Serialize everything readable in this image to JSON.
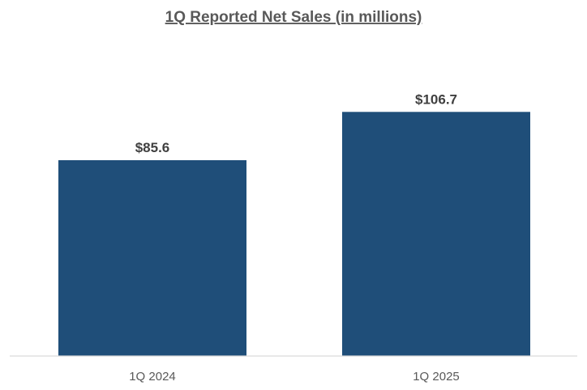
{
  "chart_data": {
    "type": "bar",
    "title": "1Q Reported Net Sales (in millions)",
    "categories": [
      "1Q 2024",
      "1Q 2025"
    ],
    "values": [
      85.6,
      106.7
    ],
    "data_labels": [
      "$85.6",
      "$106.7"
    ],
    "xlabel": "",
    "ylabel": "",
    "ylim": [
      0,
      120
    ],
    "grid": false,
    "legend": "none",
    "bar_color": "#1f4e79",
    "axis_color": "#d9d9d9"
  }
}
